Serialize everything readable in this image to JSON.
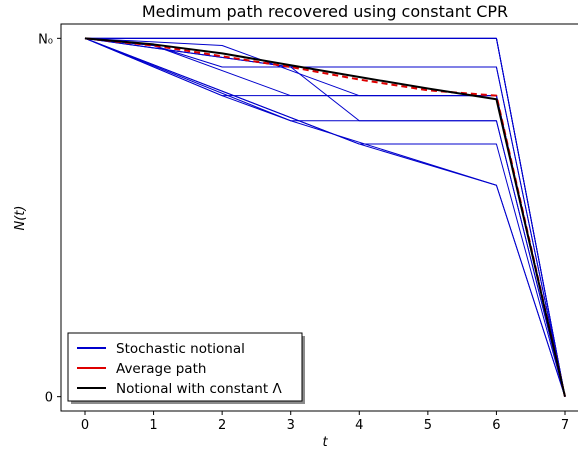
{
  "chart_data": {
    "type": "line",
    "title": "Medimum path recovered using constant CPR",
    "xlabel": "t",
    "ylabel": "N(t)",
    "xlim": [
      -0.35,
      7.35
    ],
    "ylim": [
      -0.04,
      1.04
    ],
    "x_ticks": [
      0,
      1,
      2,
      3,
      4,
      5,
      6,
      7
    ],
    "y_ticks": [
      {
        "value": 0,
        "label": "0"
      },
      {
        "value": 1,
        "label": "N₀"
      }
    ],
    "grid": false,
    "legend_position": "lower-left",
    "colors": {
      "stochastic": "#0000cc",
      "average": "#dd0000",
      "constant": "#000000"
    },
    "legend": [
      {
        "label": "Stochastic notional",
        "color": "#0000cc",
        "style": "solid"
      },
      {
        "label": "Average path",
        "color": "#dd0000",
        "style": "solid"
      },
      {
        "label": "Notional with constant Λ",
        "color": "#000000",
        "style": "solid"
      }
    ],
    "series": [
      {
        "group": "stochastic",
        "x": [
          0,
          1,
          6,
          7
        ],
        "y": [
          1.0,
          1.0,
          1.0,
          0.0
        ]
      },
      {
        "group": "stochastic",
        "x": [
          0,
          2,
          6,
          7
        ],
        "y": [
          1.0,
          1.0,
          1.0,
          0.0
        ]
      },
      {
        "group": "stochastic",
        "x": [
          0,
          3,
          6,
          7
        ],
        "y": [
          1.0,
          1.0,
          1.0,
          0.0
        ]
      },
      {
        "group": "stochastic",
        "x": [
          0,
          5,
          6,
          7
        ],
        "y": [
          1.0,
          1.0,
          1.0,
          0.0
        ]
      },
      {
        "group": "stochastic",
        "x": [
          0,
          1,
          2,
          6,
          7
        ],
        "y": [
          1.0,
          0.98,
          0.92,
          0.92,
          0.0
        ]
      },
      {
        "group": "stochastic",
        "x": [
          0,
          3,
          6,
          7
        ],
        "y": [
          1.0,
          0.92,
          0.92,
          0.0
        ]
      },
      {
        "group": "stochastic",
        "x": [
          0,
          2,
          4,
          6,
          7
        ],
        "y": [
          1.0,
          0.98,
          0.84,
          0.84,
          0.0
        ]
      },
      {
        "group": "stochastic",
        "x": [
          0,
          2,
          6,
          7
        ],
        "y": [
          1.0,
          0.84,
          0.84,
          0.0
        ]
      },
      {
        "group": "stochastic",
        "x": [
          0,
          1,
          3,
          6,
          7
        ],
        "y": [
          1.0,
          0.98,
          0.84,
          0.84,
          0.0
        ]
      },
      {
        "group": "stochastic",
        "x": [
          0,
          2,
          3,
          6,
          7
        ],
        "y": [
          1.0,
          0.84,
          0.77,
          0.77,
          0.0
        ]
      },
      {
        "group": "stochastic",
        "x": [
          0,
          3,
          4,
          6,
          7
        ],
        "y": [
          1.0,
          0.92,
          0.77,
          0.77,
          0.0
        ]
      },
      {
        "group": "stochastic",
        "x": [
          0,
          4,
          6,
          7
        ],
        "y": [
          1.0,
          0.705,
          0.705,
          0.0
        ]
      },
      {
        "group": "stochastic",
        "x": [
          0,
          4,
          6,
          7
        ],
        "y": [
          1.0,
          0.705,
          0.59,
          0.0
        ]
      },
      {
        "group": "stochastic",
        "x": [
          0,
          3,
          6,
          7
        ],
        "y": [
          1.0,
          0.77,
          0.59,
          0.0
        ]
      },
      {
        "group": "average",
        "x": [
          0,
          1,
          2,
          3,
          4,
          5,
          6,
          7
        ],
        "y": [
          1.0,
          0.98,
          0.95,
          0.92,
          0.885,
          0.855,
          0.84,
          0.0
        ]
      },
      {
        "group": "constant",
        "x": [
          0,
          1,
          2,
          3,
          4,
          5,
          6,
          7
        ],
        "y": [
          1.0,
          0.983,
          0.958,
          0.925,
          0.892,
          0.86,
          0.83,
          0.0
        ]
      }
    ]
  }
}
